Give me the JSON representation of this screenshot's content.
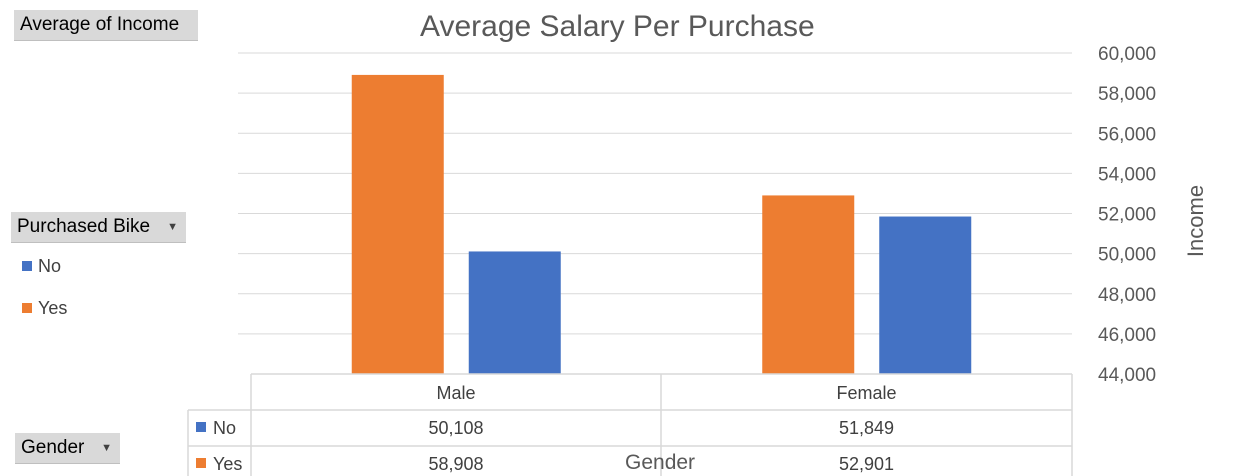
{
  "field_buttons": {
    "values_field": "Average of Income",
    "legend_field": "Purchased Bike",
    "axis_field": "Gender"
  },
  "colors": {
    "no": "#4472c4",
    "yes": "#ed7d31"
  },
  "chart_data": {
    "type": "bar",
    "title": "Average Salary Per Purchase",
    "xlabel": "Gender",
    "ylabel": "Income",
    "categories": [
      "Male",
      "Female"
    ],
    "series": [
      {
        "name": "Yes",
        "values": [
          58908,
          52901
        ],
        "color": "#ed7d31"
      },
      {
        "name": "No",
        "values": [
          50108,
          51849
        ],
        "color": "#4472c4"
      }
    ],
    "ylim": [
      44000,
      60000
    ],
    "yticks": [
      44000,
      46000,
      48000,
      50000,
      52000,
      54000,
      56000,
      58000,
      60000
    ],
    "ytick_labels": [
      "44,000",
      "46,000",
      "48,000",
      "50,000",
      "52,000",
      "54,000",
      "56,000",
      "58,000",
      "60,000"
    ],
    "y_axis_side": "right",
    "grid": true,
    "legend": {
      "placement": "left",
      "entries": [
        "No",
        "Yes"
      ]
    },
    "data_table": {
      "columns": [
        "Male",
        "Female"
      ],
      "rows": [
        {
          "label": "No",
          "values": [
            "50,108",
            "51,849"
          ]
        },
        {
          "label": "Yes",
          "values": [
            "58,908",
            "52,901"
          ]
        }
      ]
    }
  }
}
